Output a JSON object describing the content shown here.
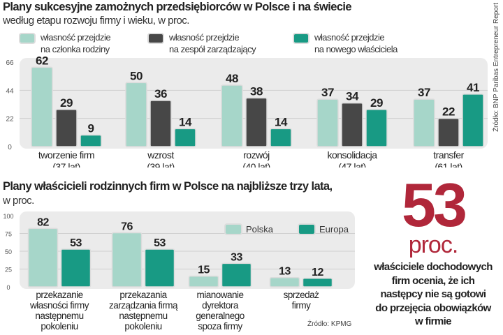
{
  "colors": {
    "light_teal": "#a6d6c9",
    "dark_gray": "#474747",
    "teal": "#189a84",
    "accent_red": "#b0273a",
    "panel": "#ebebeb"
  },
  "chart1": {
    "title": "Plany sukcesyjne zamożnych przedsiębiorców w Polsce i na świecie",
    "subtitle": "według etapu rozwoju firmy i wieku, w proc.",
    "source": "Źródło: BNP Paribas Entrepreneur Report"
  },
  "chart2": {
    "title": "Plany właścicieli rodzinnych firm w Polsce na najbliższe  trzy lata,",
    "subtitle": "w proc.",
    "source": "Źródło: KPMG"
  },
  "highlight": {
    "number": "53",
    "unit": "proc.",
    "text": [
      "właściciele dochodowych",
      "firm ocenia, że ich",
      "następcy nie są gotowi",
      "do przejęcia obowiązków",
      "w firmie"
    ]
  },
  "chart_data": [
    {
      "type": "bar",
      "categories": [
        "tworzenie firm\n(37 lat)",
        "wzrost\n(39 lat)",
        "rozwój\n(40 lat)",
        "konsolidacja\n(47 lat)",
        "transfer\n(61 lat)"
      ],
      "series": [
        {
          "name": "własność przejdzie\nna członka rodziny",
          "values": [
            62,
            50,
            48,
            37,
            37
          ]
        },
        {
          "name": "własność przejdzie\nna zespół zarządzający",
          "values": [
            29,
            36,
            38,
            34,
            22
          ]
        },
        {
          "name": "własność przejdzie\nna nowego właściciela",
          "values": [
            9,
            14,
            14,
            29,
            41
          ]
        }
      ],
      "yticks": [
        0,
        22,
        44,
        66
      ],
      "ylim": [
        0,
        66
      ],
      "grid": true,
      "legend": "top"
    },
    {
      "type": "bar",
      "categories": [
        "przekazanie\nwłasności firmy\nnastępnemu\npokoleniu",
        "przekazania\nzarządzania firmą\nnastępnemu\npokoleniu",
        "mianowanie\ndyrektora\ngeneralnego\nspoza firmy",
        "sprzedaż\nfirmy"
      ],
      "series": [
        {
          "name": "Polska",
          "values": [
            82,
            76,
            15,
            13
          ]
        },
        {
          "name": "Europa",
          "values": [
            53,
            53,
            33,
            12
          ]
        }
      ],
      "yticks": [
        0,
        25,
        50,
        75,
        100
      ],
      "ylim": [
        0,
        100
      ],
      "grid": true,
      "legend": "top-right"
    }
  ]
}
